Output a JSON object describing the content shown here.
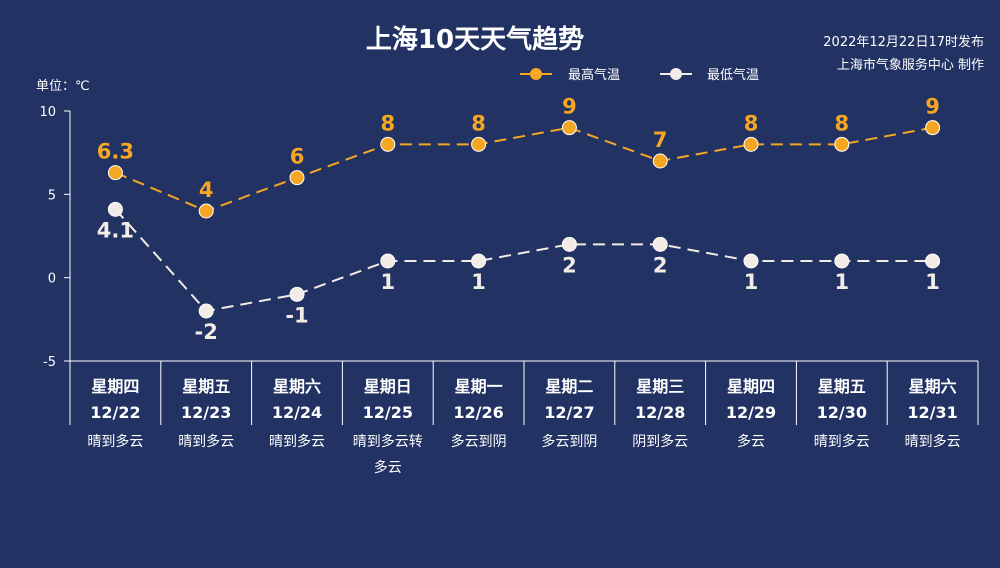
{
  "header": {
    "title": "上海10天天气趋势",
    "publish_line1": "2022年12月22日17时发布",
    "publish_line2": "上海市气象服务中心 制作",
    "unit": "单位：℃"
  },
  "colors": {
    "background": "#213263",
    "high": "#f5a623",
    "low": "#f3ece6",
    "axis": "#ffffff"
  },
  "chart_data": {
    "type": "line",
    "title": "上海10天天气趋势",
    "ylabel": "单位：℃",
    "ylim": [
      -5,
      10
    ],
    "yticks": [
      10,
      5,
      0,
      -5
    ],
    "grid": false,
    "legend_position": "top-right",
    "days": [
      "星期四",
      "星期五",
      "星期六",
      "星期日",
      "星期一",
      "星期二",
      "星期三",
      "星期四",
      "星期五",
      "星期六"
    ],
    "dates": [
      "12/22",
      "12/23",
      "12/24",
      "12/25",
      "12/26",
      "12/27",
      "12/28",
      "12/29",
      "12/30",
      "12/31"
    ],
    "weather": [
      [
        "晴到多云"
      ],
      [
        "晴到多云"
      ],
      [
        "晴到多云"
      ],
      [
        "晴到多云转",
        "多云"
      ],
      [
        "多云到阴"
      ],
      [
        "多云到阴"
      ],
      [
        "阴到多云"
      ],
      [
        "多云"
      ],
      [
        "晴到多云"
      ],
      [
        "晴到多云"
      ]
    ],
    "series": [
      {
        "name": "最高气温",
        "values": [
          6.3,
          4,
          6,
          8,
          8,
          9,
          7,
          8,
          8,
          9
        ]
      },
      {
        "name": "最低气温",
        "values": [
          4.1,
          -2,
          -1,
          1,
          1,
          2,
          2,
          1,
          1,
          1
        ]
      }
    ]
  }
}
